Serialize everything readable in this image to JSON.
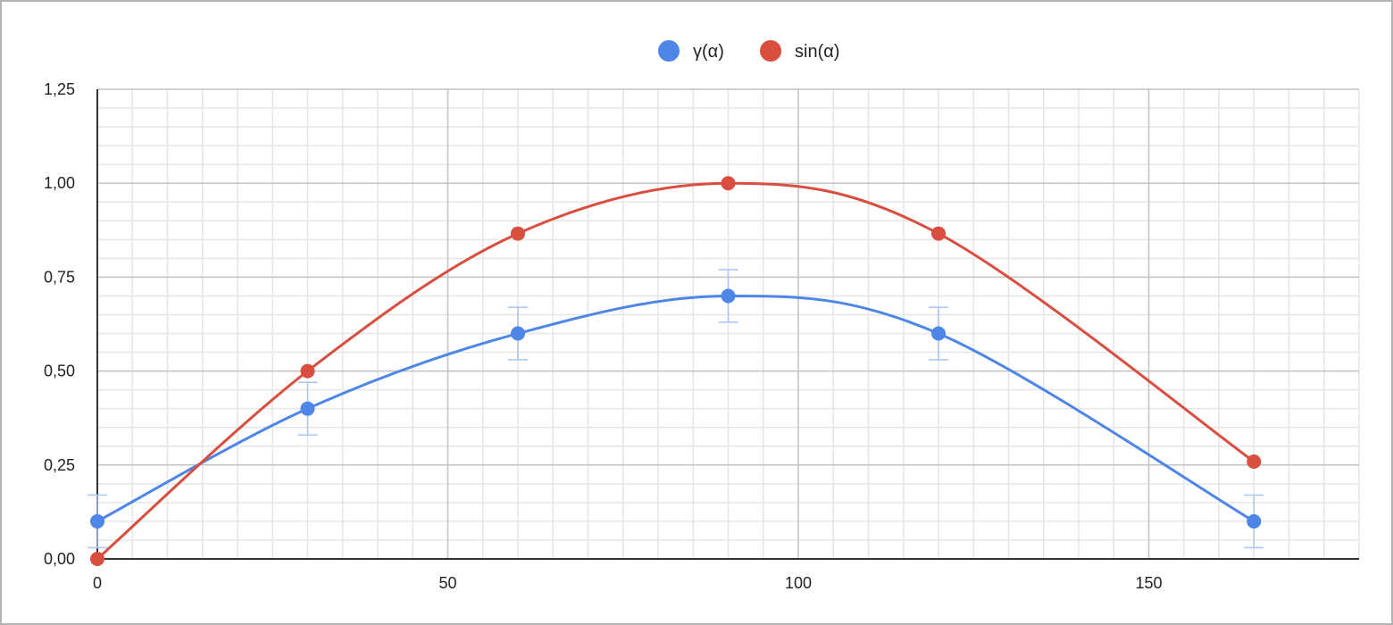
{
  "chart_data": {
    "type": "line",
    "title": "",
    "xlabel": "",
    "ylabel": "",
    "xlim": [
      0,
      180
    ],
    "ylim": [
      0,
      1.25
    ],
    "x_ticks": [
      0,
      50,
      100,
      150
    ],
    "x_tick_labels": [
      "0",
      "50",
      "100",
      "150"
    ],
    "y_ticks": [
      0,
      0.25,
      0.5,
      0.75,
      1.0,
      1.25
    ],
    "y_tick_labels": [
      "0,00",
      "0,25",
      "0,50",
      "0,75",
      "1,00",
      "1,25"
    ],
    "x_minor_step": 5,
    "y_minor_step": 0.05,
    "grid": true,
    "smooth": true,
    "legend": {
      "position": "top-center"
    },
    "series": [
      {
        "name": "γ(α)",
        "color": "#4e86e8",
        "error_bar_color": "#a9c3f2",
        "x": [
          0,
          30,
          60,
          90,
          120,
          165
        ],
        "y": [
          0.1,
          0.4,
          0.6,
          0.7,
          0.6,
          0.1
        ],
        "error": [
          0.07,
          0.07,
          0.07,
          0.07,
          0.07,
          0.07
        ]
      },
      {
        "name": "sin(α)",
        "color": "#d94e3f",
        "x": [
          0,
          30,
          60,
          90,
          120,
          165
        ],
        "y": [
          0.0,
          0.5,
          0.866,
          1.0,
          0.866,
          0.259
        ]
      }
    ]
  }
}
